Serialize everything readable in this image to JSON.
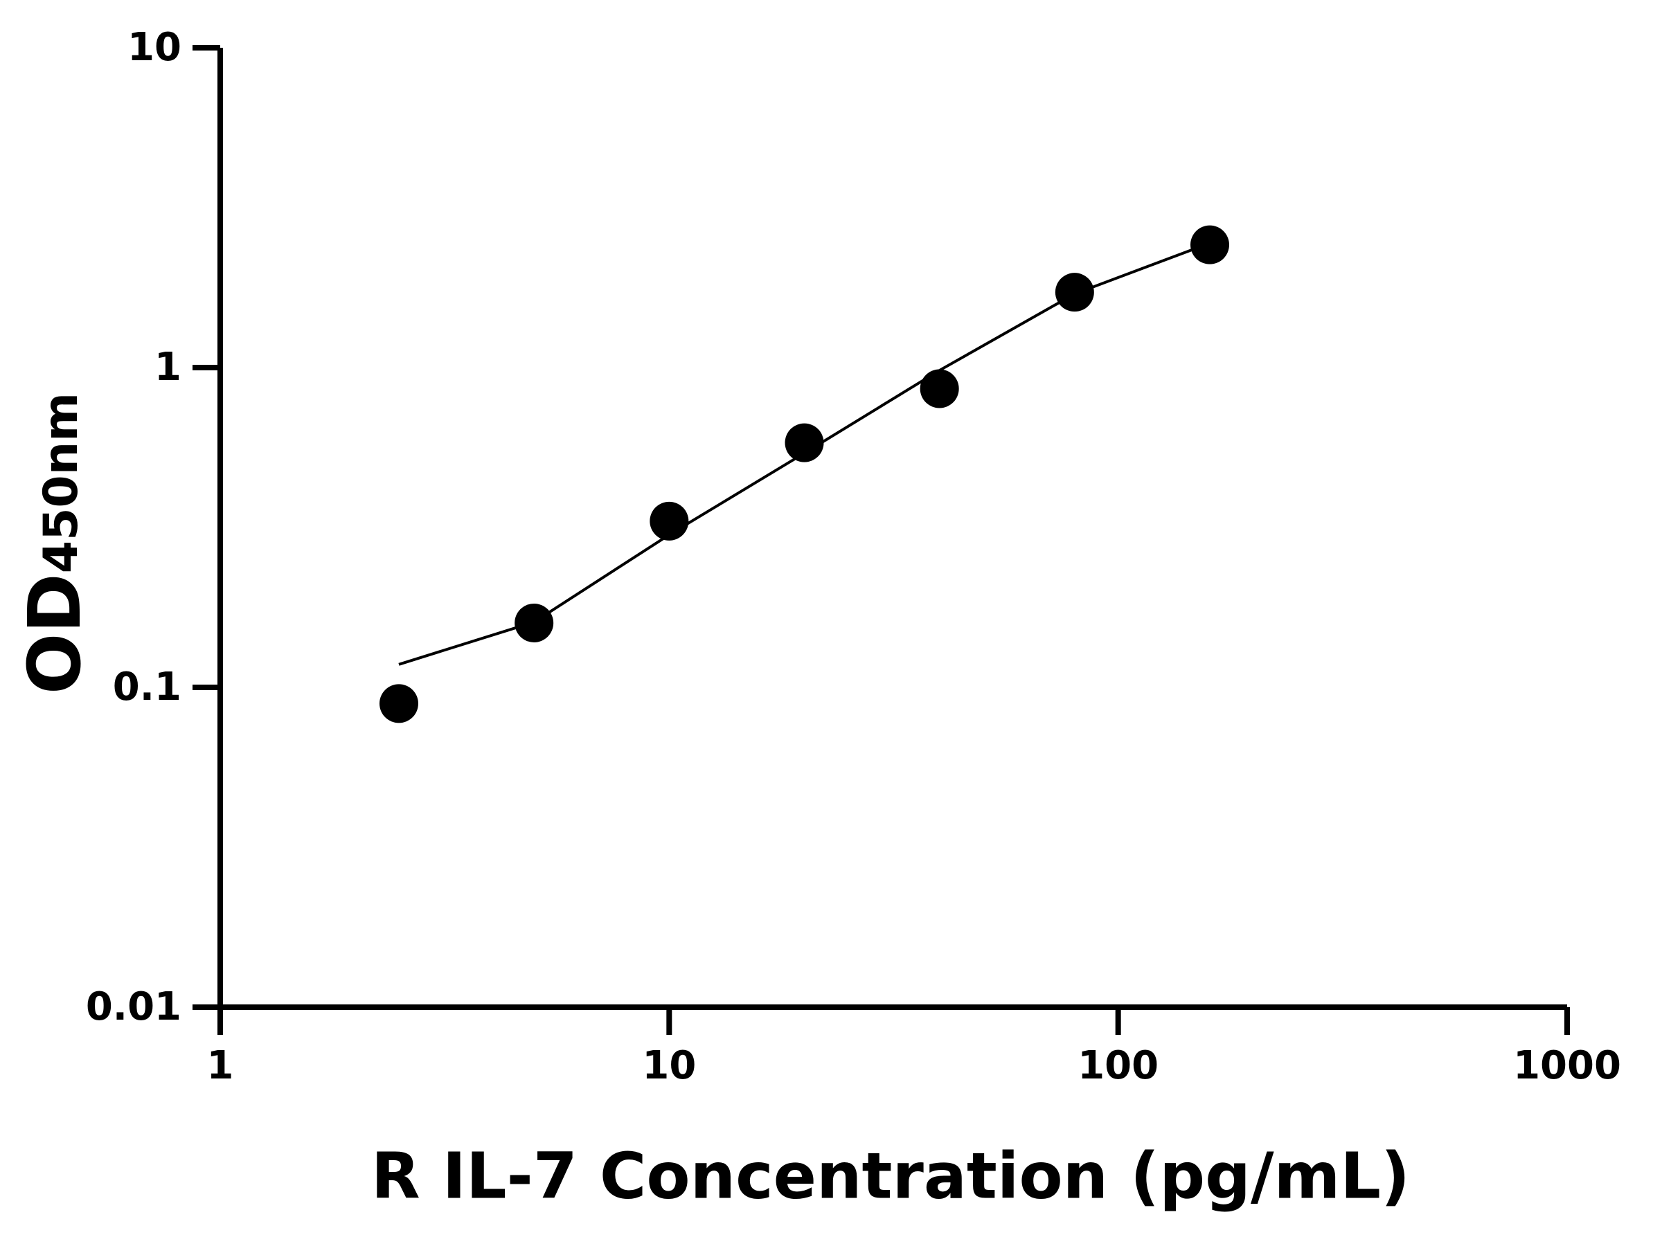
{
  "chart_data": {
    "type": "scatter",
    "x_label": "R IL-7 Concentration (pg/mL)",
    "y_label": "OD",
    "y_label_sub": "450nm",
    "xscale": "log",
    "yscale": "log",
    "xlim": [
      1,
      1000
    ],
    "xticks": [
      1,
      10,
      100,
      1000
    ],
    "ylim": [
      0.01,
      10
    ],
    "yticks": [
      0.01,
      0.1,
      1,
      10
    ],
    "color": "#000000",
    "points": {
      "x": [
        2.5,
        5,
        10,
        20,
        40,
        80,
        160
      ],
      "values": [
        0.089,
        0.159,
        0.331,
        0.582,
        0.859,
        1.72,
        2.42
      ]
    },
    "fit": {
      "x": [
        2.5,
        5,
        10,
        20,
        40,
        80,
        160
      ],
      "values": [
        0.118,
        0.16,
        0.3,
        0.54,
        0.98,
        1.7,
        2.45
      ]
    }
  }
}
